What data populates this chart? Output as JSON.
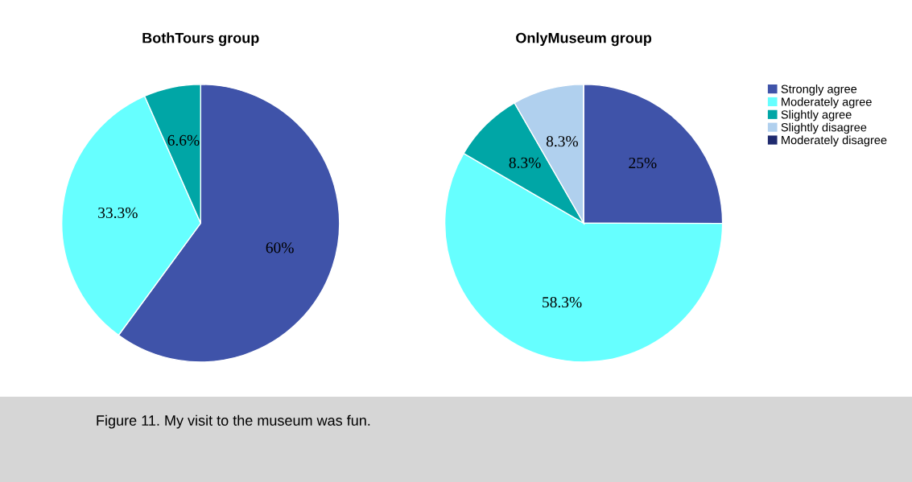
{
  "chart_data": [
    {
      "type": "pie",
      "title": "BothTours group",
      "categories": [
        null,
        null,
        null
      ],
      "values": [
        60,
        33.3,
        6.6
      ],
      "colors": [
        "#3f53a9",
        "#66ffff",
        "#00a6a6"
      ],
      "value_labels": [
        "60%",
        "33.3%",
        "6.6%"
      ],
      "annotations": [
        "Figure 11. My visit to the museum was fun."
      ]
    },
    {
      "type": "pie",
      "title": "OnlyMuseum group",
      "categories": [
        "Strongly agree",
        "Moderately agree",
        "Slightly agree",
        "Slightly disagree",
        "Moderately disagree"
      ],
      "values": [
        25,
        58.3,
        8.3,
        8.3,
        0
      ],
      "colors": [
        "#3f53a9",
        "#66ffff",
        "#00a6a6",
        "#b0d0ee",
        "#1f2a6e"
      ],
      "value_labels": [
        "25%",
        "58.3%",
        "8.3%",
        "8.3%",
        null
      ],
      "legend": "right"
    }
  ]
}
